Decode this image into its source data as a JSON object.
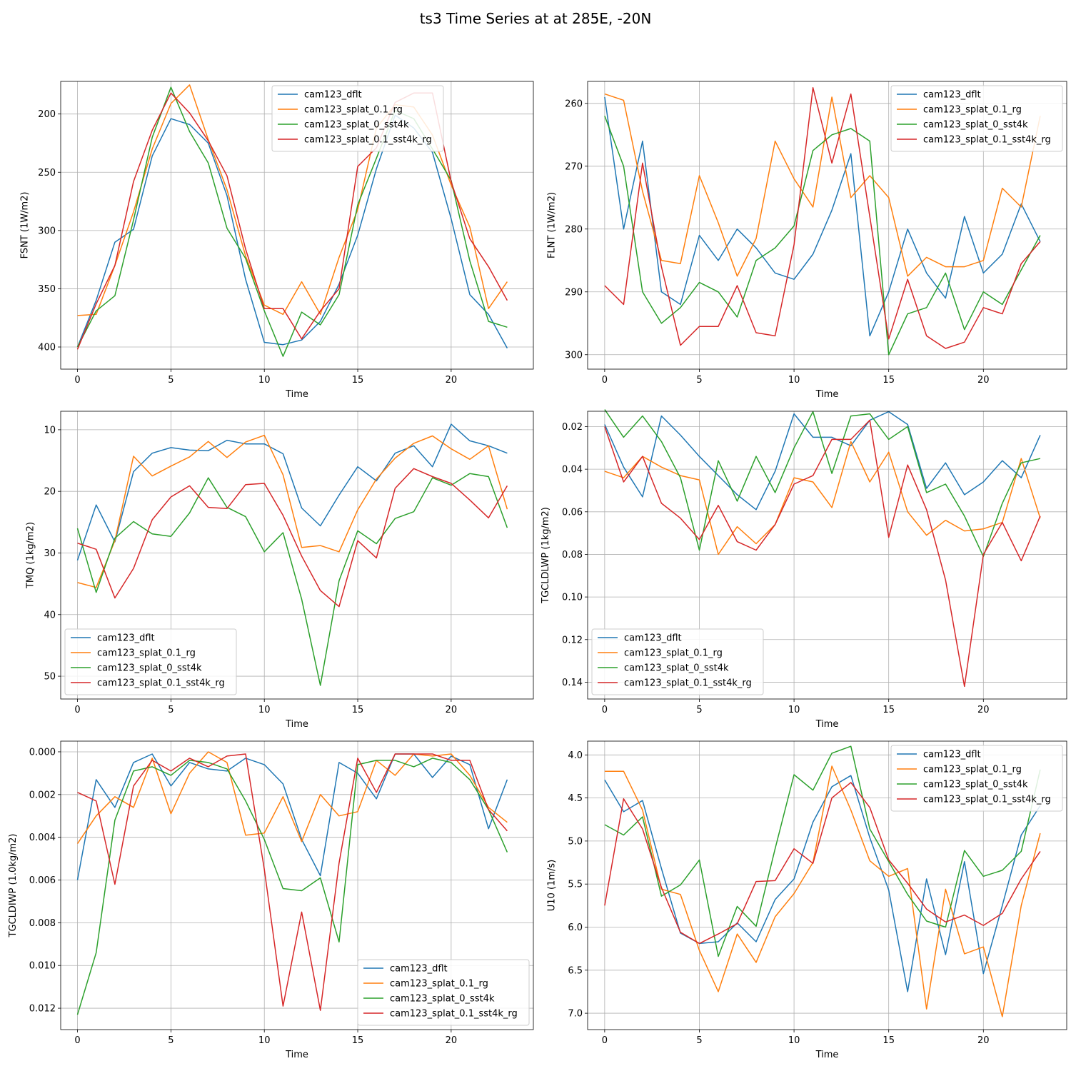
{
  "figure": {
    "title": "ts3 Time Series at at 285E, -20N"
  },
  "colors": {
    "cam123_dflt": "#1f77b4",
    "cam123_splat_0.1_rg": "#ff7f0e",
    "cam123_splat_0_sst4k": "#2ca02c",
    "cam123_splat_0.1_sst4k_rg": "#d62728"
  },
  "chart_data": [
    {
      "type": "line",
      "xlabel": "Time",
      "ylabel": "FSNT (1W/m2)",
      "y_inverted": true,
      "xlim": [
        -0.9,
        24.4
      ],
      "ylim": [
        419,
        172
      ],
      "xticks": [
        0,
        5,
        10,
        15,
        20
      ],
      "yticks": [
        200,
        250,
        300,
        350,
        400
      ],
      "yticklabels": [
        "200",
        "250",
        "300",
        "350",
        "400"
      ],
      "grid": true,
      "legend_placement": "upper center",
      "x": [
        0,
        1,
        2,
        3,
        4,
        5,
        6,
        7,
        8,
        9,
        10,
        11,
        12,
        13,
        14,
        15,
        16,
        17,
        18,
        19,
        20,
        21,
        22,
        23
      ],
      "series": [
        {
          "name": "cam123_dflt",
          "values": [
            400,
            360,
            310,
            299,
            236,
            204,
            209,
            225,
            270,
            342,
            396,
            398,
            394,
            378,
            346,
            304,
            247,
            201,
            212,
            233,
            290,
            355,
            372,
            401
          ]
        },
        {
          "name": "cam123_splat_0.1_rg",
          "values": [
            373,
            372,
            330,
            284,
            230,
            191,
            175,
            222,
            265,
            322,
            364,
            372,
            344,
            372,
            323,
            282,
            212,
            192,
            194,
            218,
            261,
            297,
            367,
            344
          ]
        },
        {
          "name": "cam123_splat_0_sst4k",
          "values": [
            400,
            369,
            356,
            291,
            220,
            177,
            215,
            242,
            298,
            324,
            369,
            408,
            370,
            381,
            355,
            278,
            238,
            197,
            204,
            230,
            257,
            326,
            378,
            383
          ]
        },
        {
          "name": "cam123_splat_0.1_sst4k_rg",
          "values": [
            402,
            363,
            330,
            258,
            214,
            182,
            199,
            223,
            253,
            316,
            367,
            367,
            393,
            369,
            350,
            245,
            229,
            190,
            182,
            182,
            258,
            307,
            331,
            360
          ]
        }
      ]
    },
    {
      "type": "line",
      "xlabel": "Time",
      "ylabel": "FLNT (1W/m2)",
      "y_inverted": true,
      "xlim": [
        -0.9,
        24.4
      ],
      "ylim": [
        302.3,
        256.5
      ],
      "xticks": [
        0,
        5,
        10,
        15,
        20
      ],
      "yticks": [
        260,
        270,
        280,
        290,
        300
      ],
      "yticklabels": [
        "260",
        "270",
        "280",
        "290",
        "300"
      ],
      "grid": true,
      "legend_placement": "upper right",
      "x": [
        0,
        1,
        2,
        3,
        4,
        5,
        6,
        7,
        8,
        9,
        10,
        11,
        12,
        13,
        14,
        15,
        16,
        17,
        18,
        19,
        20,
        21,
        22,
        23
      ],
      "series": [
        {
          "name": "cam123_dflt",
          "values": [
            259,
            280,
            266,
            290,
            292,
            281,
            285,
            280,
            283,
            287,
            288,
            284,
            277,
            268,
            297,
            290,
            280,
            287,
            291,
            278,
            287,
            284,
            276,
            282
          ]
        },
        {
          "name": "cam123_splat_0.1_rg",
          "values": [
            258.5,
            259.5,
            274,
            285,
            285.5,
            271.5,
            279,
            287.5,
            281.5,
            266,
            272,
            276.5,
            259,
            275,
            271.5,
            275,
            287.5,
            284.5,
            286,
            286,
            285,
            273.5,
            276.5,
            262
          ]
        },
        {
          "name": "cam123_splat_0_sst4k",
          "values": [
            262,
            270,
            290,
            295,
            292.5,
            288.5,
            290,
            294,
            285,
            283,
            279.5,
            267.5,
            265,
            264,
            266,
            300,
            293.5,
            292.5,
            287,
            296,
            290,
            292,
            286.5,
            281
          ]
        },
        {
          "name": "cam123_splat_0.1_sst4k_rg",
          "values": [
            289,
            292,
            269.5,
            286,
            298.5,
            295.5,
            295.5,
            289,
            296.5,
            297,
            282.5,
            257.5,
            269.5,
            258.5,
            278,
            297.5,
            288,
            297,
            299,
            298,
            292.5,
            293.5,
            285.5,
            282
          ]
        }
      ]
    },
    {
      "type": "line",
      "xlabel": "Time",
      "ylabel": "TMQ (1kg/m2)",
      "y_inverted": true,
      "xlim": [
        -0.9,
        24.4
      ],
      "ylim": [
        53.7,
        7.0
      ],
      "xticks": [
        0,
        5,
        10,
        15,
        20
      ],
      "yticks": [
        10,
        20,
        30,
        40,
        50
      ],
      "yticklabels": [
        "10",
        "20",
        "30",
        "40",
        "50"
      ],
      "grid": true,
      "legend_placement": "lower left",
      "x": [
        0,
        1,
        2,
        3,
        4,
        5,
        6,
        7,
        8,
        9,
        10,
        11,
        12,
        13,
        14,
        15,
        16,
        17,
        18,
        19,
        20,
        21,
        22,
        23
      ],
      "series": [
        {
          "name": "cam123_dflt",
          "values": [
            31.2,
            22.2,
            28.2,
            16.8,
            13.8,
            12.9,
            13.3,
            13.4,
            11.7,
            12.3,
            12.3,
            13.9,
            22.7,
            25.6,
            20.6,
            16.0,
            18.3,
            13.8,
            12.6,
            16.0,
            9.1,
            11.8,
            12.6,
            13.8
          ]
        },
        {
          "name": "cam123_splat_0.1_rg",
          "values": [
            34.8,
            35.6,
            28.0,
            14.3,
            17.5,
            15.9,
            14.4,
            11.9,
            14.5,
            12.0,
            10.9,
            17.3,
            29.1,
            28.8,
            29.8,
            23.0,
            18.0,
            14.6,
            12.2,
            11.0,
            13.1,
            14.8,
            12.6,
            22.9
          ]
        },
        {
          "name": "cam123_splat_0_sst4k",
          "values": [
            26.0,
            36.4,
            27.6,
            24.9,
            26.9,
            27.3,
            23.5,
            17.8,
            22.6,
            24.1,
            29.8,
            26.7,
            37.5,
            51.5,
            34.5,
            26.4,
            28.5,
            24.4,
            23.3,
            17.8,
            19.0,
            17.1,
            17.6,
            25.9
          ]
        },
        {
          "name": "cam123_splat_0.1_sst4k_rg",
          "values": [
            28.4,
            29.4,
            37.3,
            32.5,
            24.6,
            20.9,
            19.1,
            22.6,
            22.8,
            18.9,
            18.7,
            23.9,
            30.5,
            36.1,
            38.7,
            28.0,
            30.8,
            19.5,
            16.3,
            17.6,
            18.7,
            21.4,
            24.3,
            19.1
          ]
        }
      ]
    },
    {
      "type": "line",
      "xlabel": "Time",
      "ylabel": "TGCLDLWP (1kg/m2)",
      "y_inverted": true,
      "xlim": [
        -0.9,
        24.4
      ],
      "ylim": [
        0.1479,
        0.0128
      ],
      "xticks": [
        0,
        5,
        10,
        15,
        20
      ],
      "yticks": [
        0.02,
        0.04,
        0.06,
        0.08,
        0.1,
        0.12,
        0.14
      ],
      "yticklabels": [
        "0.02",
        "0.04",
        "0.06",
        "0.08",
        "0.10",
        "0.12",
        "0.14"
      ],
      "grid": true,
      "legend_placement": "lower left",
      "x": [
        0,
        1,
        2,
        3,
        4,
        5,
        6,
        7,
        8,
        9,
        10,
        11,
        12,
        13,
        14,
        15,
        16,
        17,
        18,
        19,
        20,
        21,
        22,
        23
      ],
      "series": [
        {
          "name": "cam123_dflt",
          "values": [
            0.019,
            0.039,
            0.053,
            0.015,
            0.024,
            0.034,
            0.043,
            0.052,
            0.059,
            0.041,
            0.014,
            0.025,
            0.025,
            0.029,
            0.017,
            0.013,
            0.019,
            0.049,
            0.037,
            0.052,
            0.046,
            0.036,
            0.044,
            0.024
          ]
        },
        {
          "name": "cam123_splat_0.1_rg",
          "values": [
            0.041,
            0.044,
            0.034,
            0.039,
            0.043,
            0.045,
            0.08,
            0.067,
            0.075,
            0.066,
            0.044,
            0.046,
            0.058,
            0.027,
            0.046,
            0.032,
            0.06,
            0.071,
            0.064,
            0.069,
            0.068,
            0.065,
            0.035,
            0.063
          ]
        },
        {
          "name": "cam123_splat_0_sst4k",
          "values": [
            0.012,
            0.025,
            0.015,
            0.027,
            0.044,
            0.078,
            0.036,
            0.055,
            0.034,
            0.051,
            0.03,
            0.013,
            0.042,
            0.015,
            0.014,
            0.026,
            0.02,
            0.051,
            0.047,
            0.062,
            0.081,
            0.056,
            0.037,
            0.035
          ]
        },
        {
          "name": "cam123_splat_0.1_sst4k_rg",
          "values": [
            0.02,
            0.046,
            0.034,
            0.056,
            0.063,
            0.073,
            0.057,
            0.074,
            0.078,
            0.066,
            0.047,
            0.043,
            0.026,
            0.026,
            0.017,
            0.072,
            0.038,
            0.059,
            0.092,
            0.142,
            0.08,
            0.065,
            0.083,
            0.062
          ]
        }
      ]
    },
    {
      "type": "line",
      "xlabel": "Time",
      "ylabel": "TGCLDIWP (1.0kg/m2)",
      "y_inverted": true,
      "xlim": [
        -0.9,
        24.4
      ],
      "ylim": [
        0.013,
        -0.0005
      ],
      "xticks": [
        0,
        5,
        10,
        15,
        20
      ],
      "yticks": [
        0.0,
        0.002,
        0.004,
        0.006,
        0.008,
        0.01,
        0.012
      ],
      "yticklabels": [
        "0.000",
        "0.002",
        "0.004",
        "0.006",
        "0.008",
        "0.010",
        "0.012"
      ],
      "grid": true,
      "legend_placement": "lower right",
      "x": [
        0,
        1,
        2,
        3,
        4,
        5,
        6,
        7,
        8,
        9,
        10,
        11,
        12,
        13,
        14,
        15,
        16,
        17,
        18,
        19,
        20,
        21,
        22,
        23
      ],
      "series": [
        {
          "name": "cam123_dflt",
          "values": [
            0.006,
            0.0013,
            0.0026,
            0.0005,
            0.0001,
            0.0016,
            0.0005,
            0.0008,
            0.0009,
            0.0003,
            0.0006,
            0.0015,
            0.0041,
            0.0058,
            0.0005,
            0.001,
            0.0022,
            0.0001,
            0.0001,
            0.0012,
            0.0002,
            0.0006,
            0.0036,
            0.0013
          ]
        },
        {
          "name": "cam123_splat_0.1_rg",
          "values": [
            0.0043,
            0.003,
            0.0021,
            0.0026,
            0.0003,
            0.0029,
            0.001,
            0.0,
            0.0005,
            0.0039,
            0.0038,
            0.0021,
            0.0042,
            0.002,
            0.003,
            0.0028,
            0.0004,
            0.0011,
            0.0001,
            0.0002,
            0.0001,
            0.0011,
            0.0026,
            0.0033
          ]
        },
        {
          "name": "cam123_splat_0_sst4k",
          "values": [
            0.0123,
            0.0094,
            0.0032,
            0.0009,
            0.0007,
            0.0011,
            0.0004,
            0.0005,
            0.0008,
            0.0023,
            0.0041,
            0.0064,
            0.0065,
            0.0059,
            0.0089,
            0.0006,
            0.0004,
            0.0004,
            0.0007,
            0.0003,
            0.0005,
            0.0013,
            0.0027,
            0.0047
          ]
        },
        {
          "name": "cam123_splat_0.1_sst4k_rg",
          "values": [
            0.0019,
            0.0023,
            0.0062,
            0.0016,
            0.0004,
            0.0009,
            0.0003,
            0.0007,
            0.0002,
            0.0001,
            0.0055,
            0.0119,
            0.0075,
            0.0121,
            0.0052,
            0.0003,
            0.0019,
            0.0001,
            0.0001,
            0.0001,
            0.0004,
            0.0004,
            0.0027,
            0.0037
          ]
        }
      ]
    },
    {
      "type": "line",
      "xlabel": "Time",
      "ylabel": "U10 (1m/s)",
      "y_inverted": true,
      "xlim": [
        -0.9,
        24.4
      ],
      "ylim": [
        7.19,
        3.84
      ],
      "xticks": [
        0,
        5,
        10,
        15,
        20
      ],
      "yticks": [
        4.0,
        4.5,
        5.0,
        5.5,
        6.0,
        6.5,
        7.0
      ],
      "yticklabels": [
        "4.0",
        "4.5",
        "5.0",
        "5.5",
        "6.0",
        "6.5",
        "7.0"
      ],
      "grid": true,
      "legend_placement": "upper right",
      "x": [
        0,
        1,
        2,
        3,
        4,
        5,
        6,
        7,
        8,
        9,
        10,
        11,
        12,
        13,
        14,
        15,
        16,
        17,
        18,
        19,
        20,
        21,
        22,
        23
      ],
      "series": [
        {
          "name": "cam123_dflt",
          "values": [
            4.29,
            4.66,
            4.53,
            5.32,
            6.07,
            6.19,
            6.17,
            5.95,
            6.17,
            5.68,
            5.44,
            4.78,
            4.37,
            4.24,
            4.96,
            5.57,
            6.75,
            5.44,
            6.32,
            5.24,
            6.54,
            5.75,
            4.93,
            4.59
          ]
        },
        {
          "name": "cam123_splat_0.1_rg",
          "values": [
            4.19,
            4.19,
            4.64,
            5.56,
            5.62,
            6.27,
            6.75,
            6.08,
            6.41,
            5.88,
            5.61,
            5.25,
            4.13,
            4.64,
            5.23,
            5.41,
            5.32,
            6.95,
            5.56,
            6.31,
            6.23,
            7.04,
            5.75,
            4.91
          ]
        },
        {
          "name": "cam123_splat_0_sst4k",
          "values": [
            4.81,
            4.93,
            4.72,
            5.64,
            5.51,
            5.22,
            6.34,
            5.76,
            5.99,
            5.09,
            4.23,
            4.41,
            3.98,
            3.9,
            4.86,
            5.24,
            5.62,
            5.93,
            6.0,
            5.11,
            5.41,
            5.34,
            5.12,
            4.17
          ]
        },
        {
          "name": "cam123_splat_0.1_sst4k_rg",
          "values": [
            5.75,
            4.51,
            4.86,
            5.54,
            6.06,
            6.19,
            6.08,
            5.96,
            5.47,
            5.46,
            5.09,
            5.26,
            4.5,
            4.32,
            4.61,
            5.22,
            5.49,
            5.79,
            5.94,
            5.86,
            5.98,
            5.84,
            5.44,
            5.12
          ]
        }
      ]
    }
  ]
}
